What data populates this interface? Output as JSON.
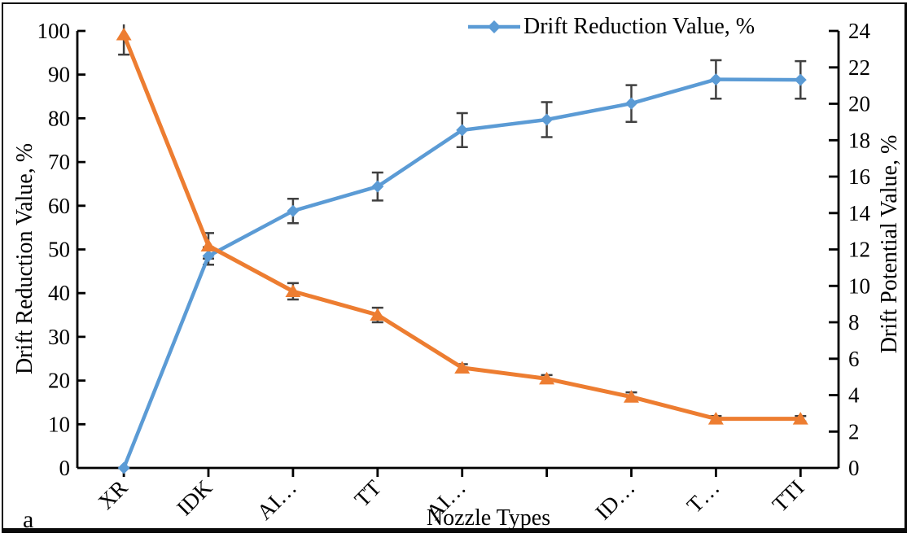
{
  "figure": {
    "panel_label": "a",
    "background_color": "#ffffff",
    "border_color": "#0b0b0b"
  },
  "legend": {
    "position": "top-center",
    "items": [
      {
        "label": "Drift Reduction Value, %",
        "series": "drift_reduction"
      }
    ]
  },
  "chart_data": {
    "type": "line",
    "title": "",
    "xlabel": "Nozzle Types",
    "categories": [
      "XR",
      "IDK",
      "AI…",
      "TT",
      "AI…",
      "",
      "ID…",
      "T…",
      "TTI"
    ],
    "axes": {
      "left": {
        "label": "Drift Reduction Value, %",
        "min": 0,
        "max": 100,
        "step": 10
      },
      "right": {
        "label": "Drift Potential Value, %",
        "min": 0,
        "max": 24,
        "step": 2
      }
    },
    "grid": false,
    "legend_position": "top",
    "error_bar_color": "#404040",
    "series": [
      {
        "id": "drift_reduction",
        "name": "Drift Reduction Value, %",
        "axis": "left",
        "color": "#5B9BD5",
        "marker": "diamond",
        "in_legend": true,
        "values": [
          0,
          48.5,
          58.8,
          64.4,
          77.3,
          79.7,
          83.4,
          88.9,
          88.8
        ],
        "errors": [
          0,
          2,
          2.8,
          3.2,
          3.9,
          4,
          4.2,
          4.4,
          4.3
        ]
      },
      {
        "id": "drift_potential",
        "name": "Drift Potential Value, %",
        "axis": "right",
        "color": "#ED7D31",
        "marker": "triangle",
        "in_legend": false,
        "values": [
          23.8,
          12.2,
          9.7,
          8.4,
          5.5,
          4.9,
          3.9,
          2.7,
          2.7
        ],
        "errors": [
          1.1,
          0.7,
          0.45,
          0.4,
          0.2,
          0.2,
          0.25,
          0.15,
          0.15
        ]
      }
    ]
  }
}
